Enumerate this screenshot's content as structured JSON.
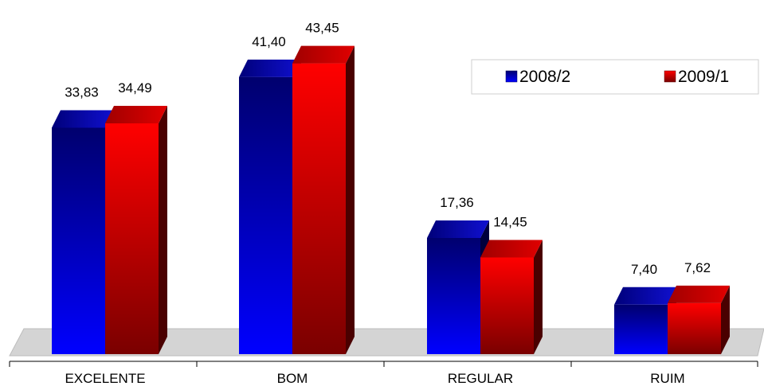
{
  "chart_data": {
    "type": "bar",
    "categories": [
      "EXCELENTE",
      "BOM",
      "REGULAR",
      "RUIM"
    ],
    "series": [
      {
        "name": "2008/2",
        "values": [
          33.83,
          41.4,
          17.36,
          7.4
        ],
        "value_labels": [
          "33,83",
          "41,40",
          "17,36",
          "7,40"
        ],
        "color": "#0000ff"
      },
      {
        "name": "2009/1",
        "values": [
          34.49,
          43.45,
          14.45,
          7.62
        ],
        "value_labels": [
          "34,49",
          "43,45",
          "14,45",
          "7,62"
        ],
        "color": "#ff0000"
      }
    ],
    "title": "",
    "xlabel": "",
    "ylabel": "",
    "ylim": [
      0,
      45
    ],
    "grid": false,
    "legend": "top-right",
    "style": "3d-bars"
  }
}
